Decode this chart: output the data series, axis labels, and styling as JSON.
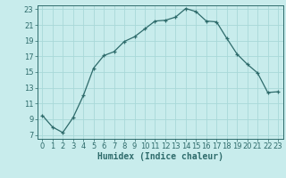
{
  "x": [
    0,
    1,
    2,
    3,
    4,
    5,
    6,
    7,
    8,
    9,
    10,
    11,
    12,
    13,
    14,
    15,
    16,
    17,
    18,
    19,
    20,
    21,
    22,
    23
  ],
  "y": [
    9.5,
    8.0,
    7.3,
    9.2,
    12.0,
    15.5,
    17.1,
    17.6,
    18.9,
    19.5,
    20.5,
    21.5,
    21.6,
    22.0,
    23.1,
    22.7,
    21.5,
    21.4,
    19.3,
    17.3,
    16.0,
    14.9,
    12.4,
    12.5
  ],
  "xlabel": "Humidex (Indice chaleur)",
  "xlim_min": -0.5,
  "xlim_max": 23.5,
  "ylim_min": 6.5,
  "ylim_max": 23.5,
  "yticks": [
    7,
    9,
    11,
    13,
    15,
    17,
    19,
    21,
    23
  ],
  "xticks": [
    0,
    1,
    2,
    3,
    4,
    5,
    6,
    7,
    8,
    9,
    10,
    11,
    12,
    13,
    14,
    15,
    16,
    17,
    18,
    19,
    20,
    21,
    22,
    23
  ],
  "line_color": "#2e6b6b",
  "marker": "+",
  "bg_color": "#c8ecec",
  "grid_color": "#a8d8d8",
  "tick_fontsize": 6,
  "xlabel_fontsize": 7
}
